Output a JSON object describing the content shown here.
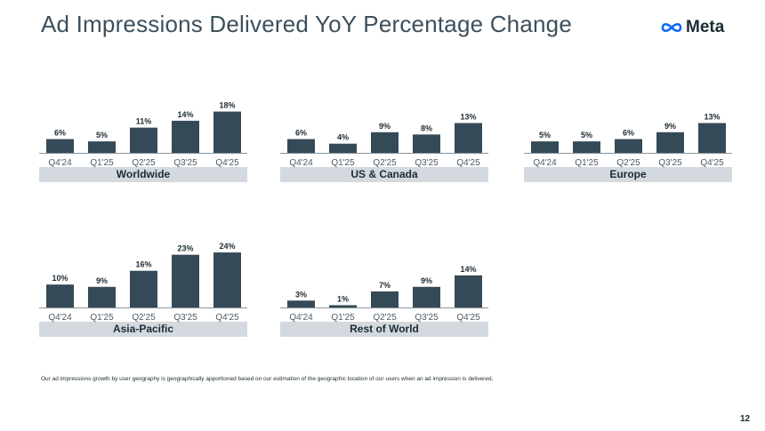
{
  "page": {
    "title": "Ad Impressions Delivered YoY Percentage Change",
    "logo_text": "Meta",
    "footnote": "Our ad impressions growth by user geography is geographically apportioned based on our estimation of the geographic location of our users when an ad impression is delivered.",
    "page_number": "12"
  },
  "colors": {
    "bar": "#354a57",
    "axis": "#8a949c",
    "label_bg": "#d3d9df",
    "title": "#3d4f5c",
    "logo_blue": "#0866ff"
  },
  "chart_data": [
    {
      "type": "bar",
      "title": "Worldwide",
      "categories": [
        "Q4'24",
        "Q1'25",
        "Q2'25",
        "Q3'25",
        "Q4'25"
      ],
      "values": [
        6,
        5,
        11,
        14,
        18
      ],
      "labels": [
        "6%",
        "5%",
        "11%",
        "14%",
        "18%"
      ],
      "ylim": [
        0,
        24
      ]
    },
    {
      "type": "bar",
      "title": "US & Canada",
      "categories": [
        "Q4'24",
        "Q1'25",
        "Q2'25",
        "Q3'25",
        "Q4'25"
      ],
      "values": [
        6,
        4,
        9,
        8,
        13
      ],
      "labels": [
        "6%",
        "4%",
        "9%",
        "8%",
        "13%"
      ],
      "ylim": [
        0,
        24
      ]
    },
    {
      "type": "bar",
      "title": "Europe",
      "categories": [
        "Q4'24",
        "Q1'25",
        "Q2'25",
        "Q3'25",
        "Q4'25"
      ],
      "values": [
        5,
        5,
        6,
        9,
        13
      ],
      "labels": [
        "5%",
        "5%",
        "6%",
        "9%",
        "13%"
      ],
      "ylim": [
        0,
        24
      ]
    },
    {
      "type": "bar",
      "title": "Asia-Pacific",
      "categories": [
        "Q4'24",
        "Q1'25",
        "Q2'25",
        "Q3'25",
        "Q4'25"
      ],
      "values": [
        10,
        9,
        16,
        23,
        24
      ],
      "labels": [
        "10%",
        "9%",
        "16%",
        "23%",
        "24%"
      ],
      "ylim": [
        0,
        24
      ]
    },
    {
      "type": "bar",
      "title": "Rest of World",
      "categories": [
        "Q4'24",
        "Q1'25",
        "Q2'25",
        "Q3'25",
        "Q4'25"
      ],
      "values": [
        3,
        1,
        7,
        9,
        14
      ],
      "labels": [
        "3%",
        "1%",
        "7%",
        "9%",
        "14%"
      ],
      "ylim": [
        0,
        24
      ]
    }
  ]
}
